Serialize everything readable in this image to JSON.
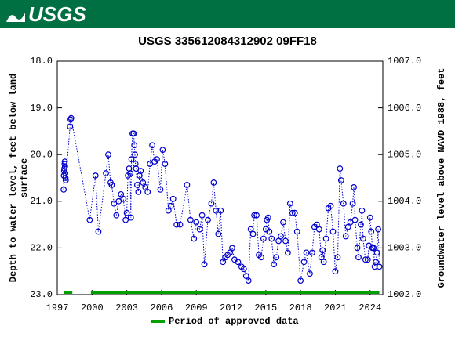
{
  "header": {
    "logo_text": "USGS"
  },
  "chart_data": {
    "type": "scatter",
    "title": "USGS 335612084312902 09FF18",
    "ylabel": [
      "Depth to water level, feet below land",
      "surface"
    ],
    "y2label": "Groundwater level above NAVD 1988, feet",
    "color": "#0000cc",
    "line_style": "dotted",
    "grid": false,
    "xlim": [
      1997,
      2025.1
    ],
    "xticks": [
      1997,
      2000,
      2003,
      2006,
      2009,
      2012,
      2015,
      2018,
      2021,
      2024
    ],
    "ylim": [
      23,
      18
    ],
    "yticks": [
      {
        "value": 18,
        "label": "18.0"
      },
      {
        "value": 19,
        "label": "19.0"
      },
      {
        "value": 20,
        "label": "20.0"
      },
      {
        "value": 21,
        "label": "21.0"
      },
      {
        "value": 22,
        "label": "22.0"
      },
      {
        "value": 23,
        "label": "23.0"
      }
    ],
    "y2lim": [
      1002,
      1007
    ],
    "y2ticks": [
      {
        "value": 1007,
        "label": "1007.0"
      },
      {
        "value": 1006,
        "label": "1006.0"
      },
      {
        "value": 1005,
        "label": "1005.0"
      },
      {
        "value": 1004,
        "label": "1004.0"
      },
      {
        "value": 1003,
        "label": "1003.0"
      },
      {
        "value": 1002,
        "label": "1002.0"
      }
    ],
    "x": [
      1997.55,
      1997.57,
      1997.59,
      1997.61,
      1997.63,
      1997.65,
      1997.67,
      1997.69,
      1997.71,
      1997.73,
      1998.1,
      1998.15,
      1998.2,
      1999.8,
      2000.3,
      2000.55,
      2001.2,
      2001.4,
      2001.6,
      2001.7,
      2001.9,
      2002.1,
      2002.3,
      2002.5,
      2002.7,
      2002.9,
      2003.0,
      2003.1,
      2003.2,
      2003.3,
      2003.35,
      2003.4,
      2003.5,
      2003.6,
      2003.65,
      2003.7,
      2003.75,
      2003.8,
      2003.9,
      2004.0,
      2004.1,
      2004.2,
      2004.4,
      2004.6,
      2004.8,
      2005.0,
      2005.2,
      2005.4,
      2005.6,
      2005.9,
      2006.1,
      2006.3,
      2006.6,
      2006.8,
      2007.0,
      2007.3,
      2007.6,
      2008.2,
      2008.5,
      2008.8,
      2009.0,
      2009.3,
      2009.5,
      2009.7,
      2010.0,
      2010.3,
      2010.5,
      2010.7,
      2010.9,
      2011.1,
      2011.3,
      2011.5,
      2011.7,
      2011.9,
      2012.1,
      2012.3,
      2012.6,
      2012.9,
      2013.1,
      2013.3,
      2013.5,
      2013.7,
      2013.9,
      2014.0,
      2014.2,
      2014.4,
      2014.6,
      2014.8,
      2015.0,
      2015.1,
      2015.2,
      2015.3,
      2015.5,
      2015.7,
      2015.9,
      2016.1,
      2016.3,
      2016.5,
      2016.7,
      2016.9,
      2017.1,
      2017.3,
      2017.5,
      2017.7,
      2018.0,
      2018.3,
      2018.5,
      2018.8,
      2019.0,
      2019.2,
      2019.4,
      2019.6,
      2019.8,
      2019.9,
      2020.0,
      2020.2,
      2020.4,
      2020.6,
      2020.8,
      2021.0,
      2021.2,
      2021.4,
      2021.5,
      2021.7,
      2021.9,
      2022.1,
      2022.3,
      2022.5,
      2022.6,
      2022.7,
      2022.9,
      2023.0,
      2023.2,
      2023.3,
      2023.4,
      2023.6,
      2023.8,
      2023.9,
      2024.0,
      2024.1,
      2024.2,
      2024.3,
      2024.4,
      2024.5,
      2024.6,
      2024.7,
      2024.8
    ],
    "values": [
      20.75,
      20.45,
      20.35,
      20.3,
      20.2,
      20.15,
      20.25,
      20.4,
      20.5,
      20.55,
      19.4,
      19.25,
      19.22,
      21.4,
      20.45,
      21.65,
      20.4,
      20.0,
      20.6,
      20.65,
      21.05,
      21.3,
      21.0,
      20.85,
      20.95,
      21.4,
      21.25,
      20.45,
      20.3,
      20.4,
      21.35,
      20.1,
      19.55,
      19.55,
      19.8,
      20.0,
      20.2,
      20.3,
      20.65,
      20.8,
      20.45,
      20.35,
      20.6,
      20.7,
      20.8,
      20.2,
      19.8,
      20.15,
      20.1,
      20.75,
      19.9,
      20.2,
      21.2,
      21.1,
      20.95,
      21.5,
      21.5,
      20.65,
      21.4,
      21.8,
      21.45,
      21.6,
      21.3,
      22.35,
      21.4,
      21.05,
      20.6,
      21.2,
      21.7,
      21.2,
      22.3,
      22.2,
      22.15,
      22.1,
      22.0,
      22.25,
      22.3,
      22.4,
      22.45,
      22.6,
      22.7,
      21.6,
      21.7,
      21.3,
      21.3,
      22.15,
      22.2,
      21.8,
      21.6,
      21.4,
      21.35,
      21.65,
      21.8,
      22.35,
      22.2,
      21.85,
      21.75,
      21.45,
      21.85,
      22.1,
      21.05,
      21.25,
      21.25,
      21.65,
      22.7,
      22.3,
      22.1,
      22.55,
      22.1,
      21.55,
      21.5,
      21.6,
      22.2,
      22.05,
      22.3,
      21.8,
      21.15,
      21.1,
      21.65,
      22.5,
      22.2,
      20.3,
      20.55,
      21.05,
      21.75,
      21.55,
      21.45,
      21.05,
      20.7,
      21.4,
      22.0,
      22.2,
      21.5,
      21.2,
      21.8,
      22.25,
      22.25,
      21.95,
      21.35,
      21.65,
      22.0,
      22.0,
      22.4,
      22.3,
      22.1,
      21.6,
      22.4
    ],
    "approved_periods": [
      {
        "start": 1997.6,
        "end": 1998.3
      },
      {
        "start": 1999.9,
        "end": 2024.8
      }
    ],
    "approved_color": "#00a000",
    "legend": "Period of approved data"
  }
}
